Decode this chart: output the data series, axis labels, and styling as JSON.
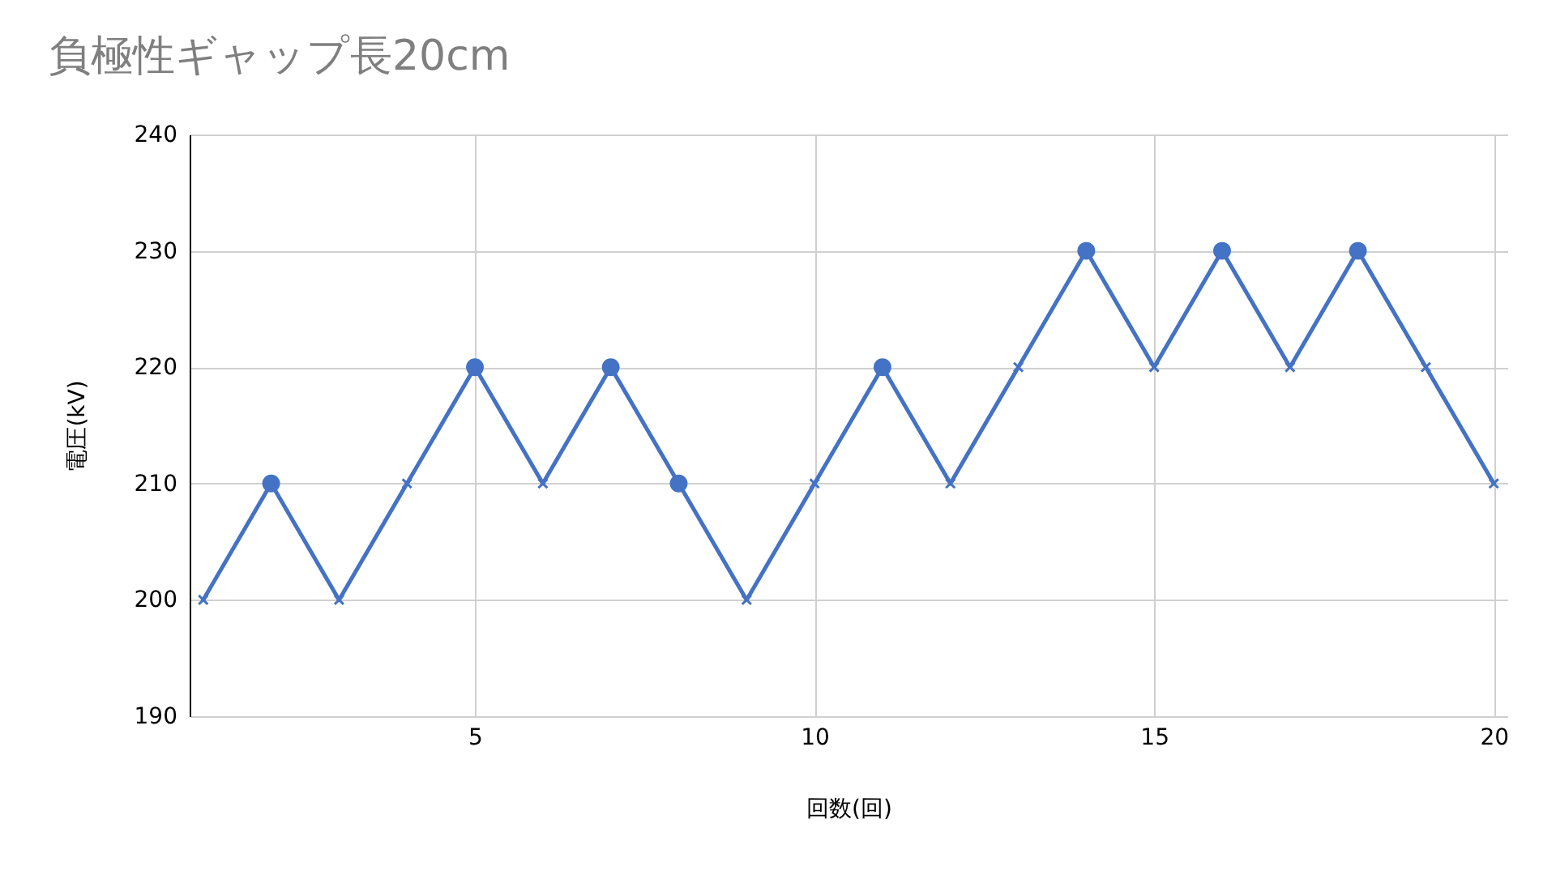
{
  "chart_data": {
    "type": "line",
    "title": "負極性ギャップ長20cm",
    "xlabel": "回数(回)",
    "ylabel": "電圧(kV)",
    "x": [
      1,
      2,
      3,
      4,
      5,
      6,
      7,
      8,
      9,
      10,
      11,
      12,
      13,
      14,
      15,
      16,
      17,
      18,
      19,
      20
    ],
    "xlim": [
      0.8,
      20.2
    ],
    "xticks": [
      5,
      10,
      15,
      20
    ],
    "ylim": [
      190,
      240
    ],
    "yticks": [
      190,
      200,
      210,
      220,
      230,
      240
    ],
    "grid": true,
    "series": [
      {
        "marker": "none",
        "color": "#4472c4",
        "values": [
          200,
          210,
          200,
          210,
          220,
          210,
          220,
          210,
          200,
          210,
          220,
          210,
          220,
          230,
          220,
          230,
          220,
          230,
          220,
          210
        ]
      },
      {
        "type": "scatter",
        "marker": "circle",
        "color": "#4472c4",
        "x": [
          2,
          5,
          7,
          8,
          11,
          14,
          16,
          18
        ],
        "values": [
          210,
          220,
          220,
          210,
          220,
          230,
          230,
          230
        ]
      },
      {
        "type": "scatter",
        "marker": "cross",
        "color": "#4472c4",
        "x": [
          1,
          3,
          4,
          6,
          9,
          10,
          12,
          13,
          15,
          17,
          19,
          20
        ],
        "values": [
          200,
          200,
          210,
          210,
          200,
          210,
          210,
          220,
          220,
          220,
          220,
          210
        ]
      }
    ]
  }
}
